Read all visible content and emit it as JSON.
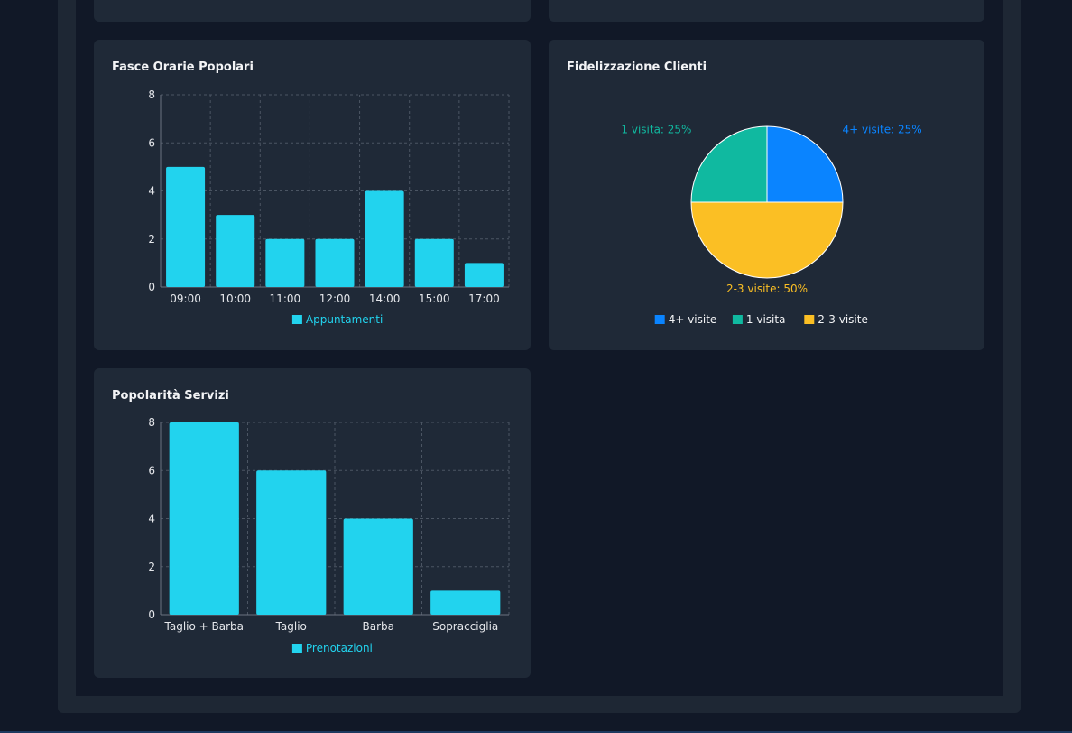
{
  "colors": {
    "bar": "#22d3ee",
    "grid": "#4b5563",
    "axis_text": "#e5e7eb"
  },
  "cards": {
    "time_slots": {
      "title": "Fasce Orarie Popolari"
    },
    "loyalty": {
      "title": "Fidelizzazione Clienti"
    },
    "services": {
      "title": "Popolarità Servizi"
    }
  },
  "chart_data": [
    {
      "type": "bar",
      "title": "Fasce Orarie Popolari",
      "categories": [
        "09:00",
        "10:00",
        "11:00",
        "12:00",
        "14:00",
        "15:00",
        "17:00"
      ],
      "series": [
        {
          "name": "Appuntamenti",
          "values": [
            5,
            3,
            2,
            2,
            4,
            2,
            1
          ],
          "color": "#22d3ee"
        }
      ],
      "ylim": [
        0,
        8
      ],
      "yticks": [
        "0",
        "2",
        "4",
        "6",
        "8"
      ],
      "grid": true,
      "legend": "bottom"
    },
    {
      "type": "pie",
      "title": "Fidelizzazione Clienti",
      "slices": [
        {
          "label": "4+ visite",
          "value": 25,
          "data_label": "4+ visite: 25%",
          "color": "#0a84ff"
        },
        {
          "label": "2-3 visite",
          "value": 50,
          "data_label": "2-3 visite: 50%",
          "color": "#fbbf24"
        },
        {
          "label": "1 visita",
          "value": 25,
          "data_label": "1 visita: 25%",
          "color": "#10b9a0"
        }
      ],
      "legend_order": [
        "4+ visite",
        "1 visita",
        "2-3 visite"
      ],
      "legend": "bottom"
    },
    {
      "type": "bar",
      "title": "Popolarità Servizi",
      "categories": [
        "Taglio + Barba",
        "Taglio",
        "Barba",
        "Sopracciglia"
      ],
      "series": [
        {
          "name": "Prenotazioni",
          "values": [
            8,
            6,
            4,
            1
          ],
          "color": "#22d3ee"
        }
      ],
      "ylim": [
        0,
        8
      ],
      "yticks": [
        "0",
        "2",
        "4",
        "6",
        "8"
      ],
      "grid": true,
      "legend": "bottom"
    }
  ]
}
